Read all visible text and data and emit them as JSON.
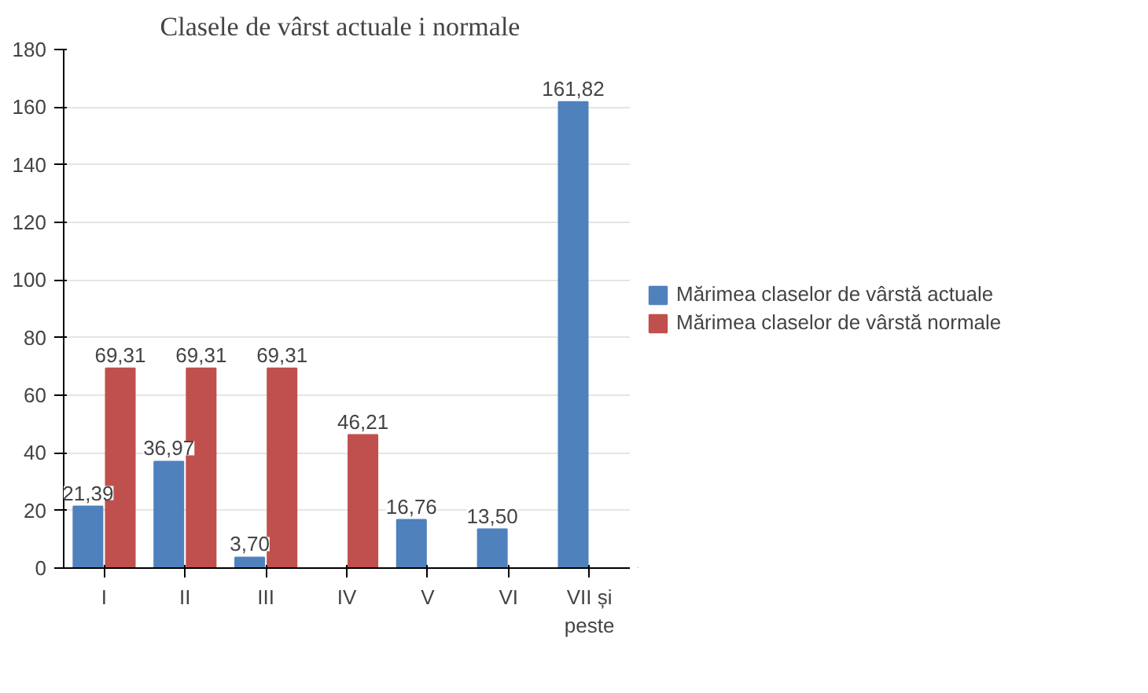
{
  "chart_data": {
    "type": "bar",
    "title": "Clasele de vârst  actuale  i normale",
    "categories": [
      "I",
      "II",
      "III",
      "IV",
      "V",
      "VI",
      "VII și\npeste"
    ],
    "series": [
      {
        "name": "Mărimea claselor de vârstă actuale",
        "color": "#4f81bd",
        "values": [
          21.39,
          36.97,
          3.7,
          null,
          16.76,
          13.5,
          161.82
        ],
        "value_labels": [
          "21,39",
          "36,97",
          "3,70",
          null,
          "16,76",
          "13,50",
          "161,82"
        ]
      },
      {
        "name": "Mărimea claselor de vârstă normale",
        "color": "#c0504d",
        "values": [
          69.31,
          69.31,
          69.31,
          46.21,
          null,
          null,
          null
        ],
        "value_labels": [
          "69,31",
          "69,31",
          "69,31",
          "46,21",
          null,
          null,
          null
        ]
      }
    ],
    "ylim": [
      0,
      180
    ],
    "yticks": [
      0,
      20,
      40,
      60,
      80,
      100,
      120,
      140,
      160,
      180
    ],
    "grid": "y",
    "legend": "right"
  }
}
